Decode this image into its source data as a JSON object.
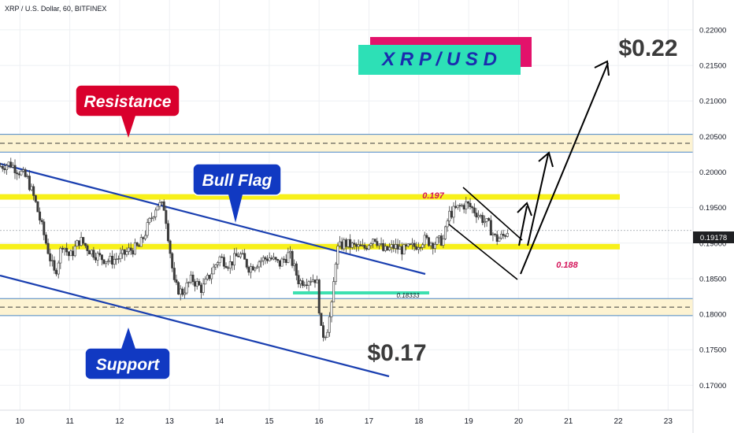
{
  "header": {
    "symbol_title": "XRP / U.S. Dollar, 60, BITFINEX"
  },
  "chart_data": {
    "type": "candlestick",
    "title": "X R P / U S D",
    "ylim": [
      0.1665,
      0.2242
    ],
    "yticks": [
      0.17,
      0.175,
      0.18,
      0.185,
      0.19,
      0.195,
      0.2,
      0.205,
      0.21,
      0.215,
      0.22
    ],
    "ytick_labels": [
      "0.17000",
      "0.17500",
      "0.18000",
      "0.18500",
      "0.19000",
      "0.19500",
      "0.20000",
      "0.20500",
      "0.21000",
      "0.21500",
      "0.22000"
    ],
    "xlim": [
      9.6,
      23.5
    ],
    "xticks": [
      10,
      11,
      12,
      13,
      14,
      15,
      16,
      17,
      18,
      19,
      20,
      21,
      22,
      23
    ],
    "xtick_labels": [
      "10",
      "11",
      "12",
      "13",
      "14",
      "15",
      "16",
      "17",
      "18",
      "19",
      "20",
      "21",
      "22",
      "23"
    ],
    "current_price": 0.19178,
    "current_price_label": "0.19178",
    "grid": true,
    "price_path": [
      [
        9.6,
        0.2008
      ],
      [
        9.8,
        0.2012
      ],
      [
        10.0,
        0.2
      ],
      [
        10.15,
        0.199
      ],
      [
        10.3,
        0.196
      ],
      [
        10.45,
        0.192
      ],
      [
        10.6,
        0.188
      ],
      [
        10.7,
        0.1855
      ],
      [
        10.85,
        0.19
      ],
      [
        11.0,
        0.188
      ],
      [
        11.2,
        0.1905
      ],
      [
        11.4,
        0.189
      ],
      [
        11.6,
        0.188
      ],
      [
        11.8,
        0.1875
      ],
      [
        12.0,
        0.188
      ],
      [
        12.2,
        0.189
      ],
      [
        12.4,
        0.1895
      ],
      [
        12.6,
        0.193
      ],
      [
        12.75,
        0.1955
      ],
      [
        12.9,
        0.195
      ],
      [
        13.0,
        0.1895
      ],
      [
        13.1,
        0.184
      ],
      [
        13.25,
        0.183
      ],
      [
        13.45,
        0.185
      ],
      [
        13.65,
        0.1835
      ],
      [
        13.85,
        0.186
      ],
      [
        14.0,
        0.188
      ],
      [
        14.2,
        0.187
      ],
      [
        14.4,
        0.1885
      ],
      [
        14.6,
        0.1865
      ],
      [
        14.8,
        0.1875
      ],
      [
        15.0,
        0.188
      ],
      [
        15.2,
        0.187
      ],
      [
        15.4,
        0.1885
      ],
      [
        15.6,
        0.1845
      ],
      [
        15.8,
        0.185
      ],
      [
        15.95,
        0.185
      ],
      [
        16.05,
        0.177
      ],
      [
        16.15,
        0.1775
      ],
      [
        16.25,
        0.181
      ],
      [
        16.35,
        0.189
      ],
      [
        16.5,
        0.19
      ],
      [
        16.7,
        0.1895
      ],
      [
        16.9,
        0.1892
      ],
      [
        17.1,
        0.191
      ],
      [
        17.3,
        0.1888
      ],
      [
        17.5,
        0.1895
      ],
      [
        17.7,
        0.189
      ],
      [
        17.9,
        0.1895
      ],
      [
        18.1,
        0.1905
      ],
      [
        18.3,
        0.19
      ],
      [
        18.5,
        0.1905
      ],
      [
        18.6,
        0.194
      ],
      [
        18.8,
        0.195
      ],
      [
        18.95,
        0.1955
      ],
      [
        19.05,
        0.195
      ],
      [
        19.2,
        0.194
      ],
      [
        19.4,
        0.1925
      ],
      [
        19.55,
        0.1905
      ],
      [
        19.7,
        0.191
      ],
      [
        19.78,
        0.1918
      ]
    ],
    "annotations": {
      "resistance": {
        "label": "Resistance",
        "zone": [
          0.2028,
          0.2053
        ]
      },
      "support": {
        "label": "Support",
        "zone": [
          0.1798,
          0.1822
        ]
      },
      "bull_flag": {
        "label": "Bull Flag"
      },
      "level_197": {
        "label": "0.197",
        "value": 0.1965
      },
      "level_188": {
        "label": "0.188",
        "value": 0.1895
      },
      "level_18333": {
        "label": "0.18333",
        "value": 0.183
      },
      "target_022": {
        "label": "$0.22"
      },
      "target_017": {
        "label": "$0.17"
      }
    },
    "colors": {
      "yellow_band": "#f7f01a",
      "zone_fill": "#fdf3d2",
      "zone_border": "#4a86c5",
      "channel": "#1a3fb0",
      "candle_up": "#3b3b3b",
      "candle_down": "#3b3b3b",
      "resistance_bg": "#d9002c",
      "support_bg": "#1139c2",
      "title_bg": "#2de0b6",
      "title_shadow": "#e3126b",
      "title_text": "#1a2cae",
      "teal_line": "#3de0b0",
      "level_text": "#d4145a"
    }
  }
}
